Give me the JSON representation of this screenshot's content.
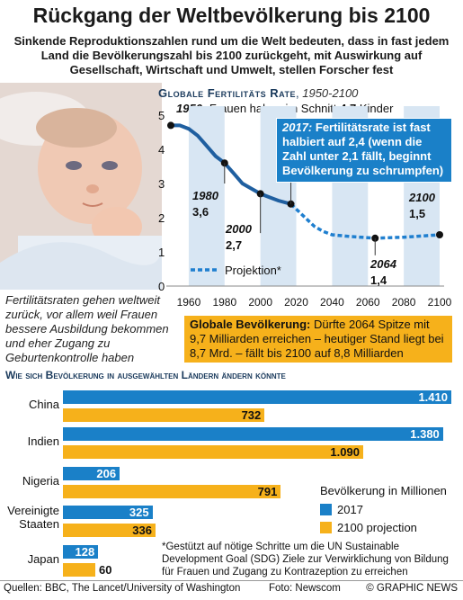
{
  "title": "Rückgang der Weltbevölkerung bis 2100",
  "subtitle": "Sinkende Reproduktionszahlen rund um die Welt bedeuten, dass in fast jedem Land  die Bevölkerungszahl bis 2100 zurückgeht, mit Auswirkung auf Gesellschaft, Wirtschaft und Umwelt, stellen Forscher fest",
  "side_text": "Fertilitätsraten gehen weltweit zurück, vor allem weil Frauen bessere Ausbildung bekommen und eher Zugang zu Geburtenkontrolle haben",
  "fertility": {
    "header_main": "Globale Fertilitäts Rate",
    "header_range": "1950-2100",
    "note_1950_year": "1950:",
    "note_1950_text": "Frauen haben im Schnitt",
    "note_1950_value": "4,7",
    "note_1950_unit": "Kinder",
    "note_2017_year": "2017:",
    "note_2017_text": "Fertilitätsrate ist fast halbiert auf 2,4 (wenn die Zahl unter 2,1 fällt, beginnt Bevölkerung zu schrumpfen)",
    "projection_label": "Projektion*",
    "labels": [
      {
        "year": "1980",
        "value": "3,6"
      },
      {
        "year": "2000",
        "value": "2,7"
      },
      {
        "year": "2064",
        "value": "1,4"
      },
      {
        "year": "2100",
        "value": "1,5"
      }
    ]
  },
  "population_box": {
    "label": "Globale Bevölkerung:",
    "text": "Dürfte 2064 Spitze mit 9,7 Milliarden erreichen – heutiger Stand liegt bei 8,7 Mrd. – fällt bis 2100 auf 8,8 Milliarden"
  },
  "bar_section": {
    "header": "Wie sich Bevölkerung in ausgewählten Ländern ändern könnte",
    "legend_title": "Bevölkerung in Millionen",
    "legend_2017": "2017",
    "legend_2100": "2100 projection",
    "colors": {
      "2017": "#1a80c8",
      "2100": "#f6b11b"
    }
  },
  "footnote": "*Gestützt auf nötige Schritte um die UN Sustainable Development Goal (SDG) Ziele zur Verwirklichung von Bildung für Frauen und Zugang zu Kontrazeption zu erreichen",
  "source": "Quellen: BBC, The Lancet/University of Washington",
  "photo_credit": "Foto: Newscom",
  "copyright": "© GRAPHIC NEWS",
  "chart_data": [
    {
      "type": "line",
      "title": "Globale Fertilitäts Rate, 1950-2100",
      "xlabel": "",
      "ylabel": "",
      "xlim": [
        1950,
        2100
      ],
      "ylim": [
        0,
        5
      ],
      "xticks": [
        "1960",
        "1980",
        "2000",
        "2020",
        "2040",
        "2060",
        "2080",
        "2100"
      ],
      "yticks": [
        "0",
        "1",
        "2",
        "3",
        "4",
        "5"
      ],
      "grid": false,
      "series": [
        {
          "name": "",
          "x": [
            1950,
            1955,
            1960,
            1965,
            1970,
            1975,
            1980,
            1985,
            1990,
            1995,
            2000,
            2005,
            2010,
            2017
          ],
          "y": [
            4.7,
            4.7,
            4.6,
            4.4,
            4.1,
            3.8,
            3.6,
            3.3,
            3.0,
            2.85,
            2.7,
            2.6,
            2.5,
            2.4
          ]
        },
        {
          "name": "Projektion*",
          "x": [
            2017,
            2025,
            2030,
            2035,
            2040,
            2050,
            2064,
            2080,
            2100
          ],
          "y": [
            2.4,
            2.0,
            1.75,
            1.6,
            1.5,
            1.45,
            1.4,
            1.43,
            1.5
          ]
        }
      ]
    },
    {
      "type": "bar",
      "title": "Wie sich Bevölkerung in ausgewählten Ländern ändern könnte",
      "categories": [
        "China",
        "Indien",
        "Nigeria",
        "Vereinigte Staaten",
        "Japan"
      ],
      "series": [
        {
          "name": "2017",
          "values": [
            1410,
            1380,
            206,
            325,
            128
          ],
          "labels": [
            "1.410",
            "1.380",
            "206",
            "325",
            "128"
          ]
        },
        {
          "name": "2100 projection",
          "values": [
            732,
            1090,
            791,
            336,
            60
          ],
          "labels": [
            "732",
            "1.090",
            "791",
            "336",
            "60"
          ]
        }
      ],
      "ylabel": "Bevölkerung in Millionen"
    }
  ]
}
